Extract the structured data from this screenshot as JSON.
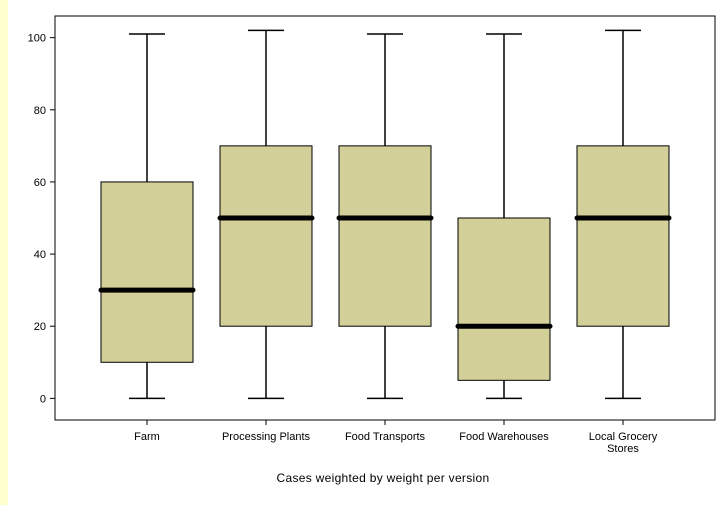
{
  "chart_data": {
    "type": "boxplot",
    "title": "",
    "xlabel": "Cases weighted by weight per version",
    "ylabel": "",
    "ylim": [
      -6,
      106
    ],
    "yticks": [
      0,
      20,
      40,
      60,
      80,
      100
    ],
    "grid": false,
    "colors": {
      "box_fill": "#d3cf99",
      "median": "#000000",
      "background": "#ffffcc"
    },
    "categories": [
      {
        "label_lines": [
          "Farm"
        ],
        "whisker_low": 0,
        "q1": 10,
        "median": 30,
        "q3": 60,
        "whisker_high": 101
      },
      {
        "label_lines": [
          "Processing Plants"
        ],
        "whisker_low": 0,
        "q1": 20,
        "median": 50,
        "q3": 70,
        "whisker_high": 102
      },
      {
        "label_lines": [
          "Food Transports"
        ],
        "whisker_low": 0,
        "q1": 20,
        "median": 50,
        "q3": 70,
        "whisker_high": 101
      },
      {
        "label_lines": [
          "Food Warehouses"
        ],
        "whisker_low": 0,
        "q1": 5,
        "median": 20,
        "q3": 50,
        "whisker_high": 101
      },
      {
        "label_lines": [
          "Local Grocery",
          "Stores"
        ],
        "whisker_low": 0,
        "q1": 20,
        "median": 50,
        "q3": 70,
        "whisker_high": 102
      }
    ]
  }
}
